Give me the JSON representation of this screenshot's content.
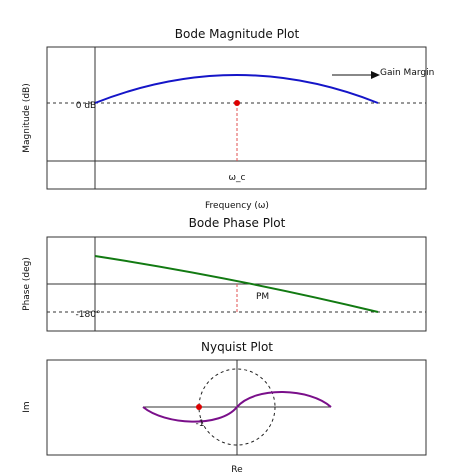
{
  "panels": [
    {
      "title": "Bode Magnitude Plot",
      "y_label": "Magnitude (dB)",
      "x_label": "Frequency (ω)",
      "annotations": [
        "0 dB",
        "ω_c",
        "Gain Margin"
      ]
    },
    {
      "title": "Bode Phase Plot",
      "y_label": "Phase (deg)",
      "annotations": [
        "-180°",
        "PM"
      ]
    },
    {
      "title": "Nyquist Plot",
      "y_label": "Im",
      "x_label": "Re",
      "annotations": [
        "-1"
      ]
    }
  ]
}
